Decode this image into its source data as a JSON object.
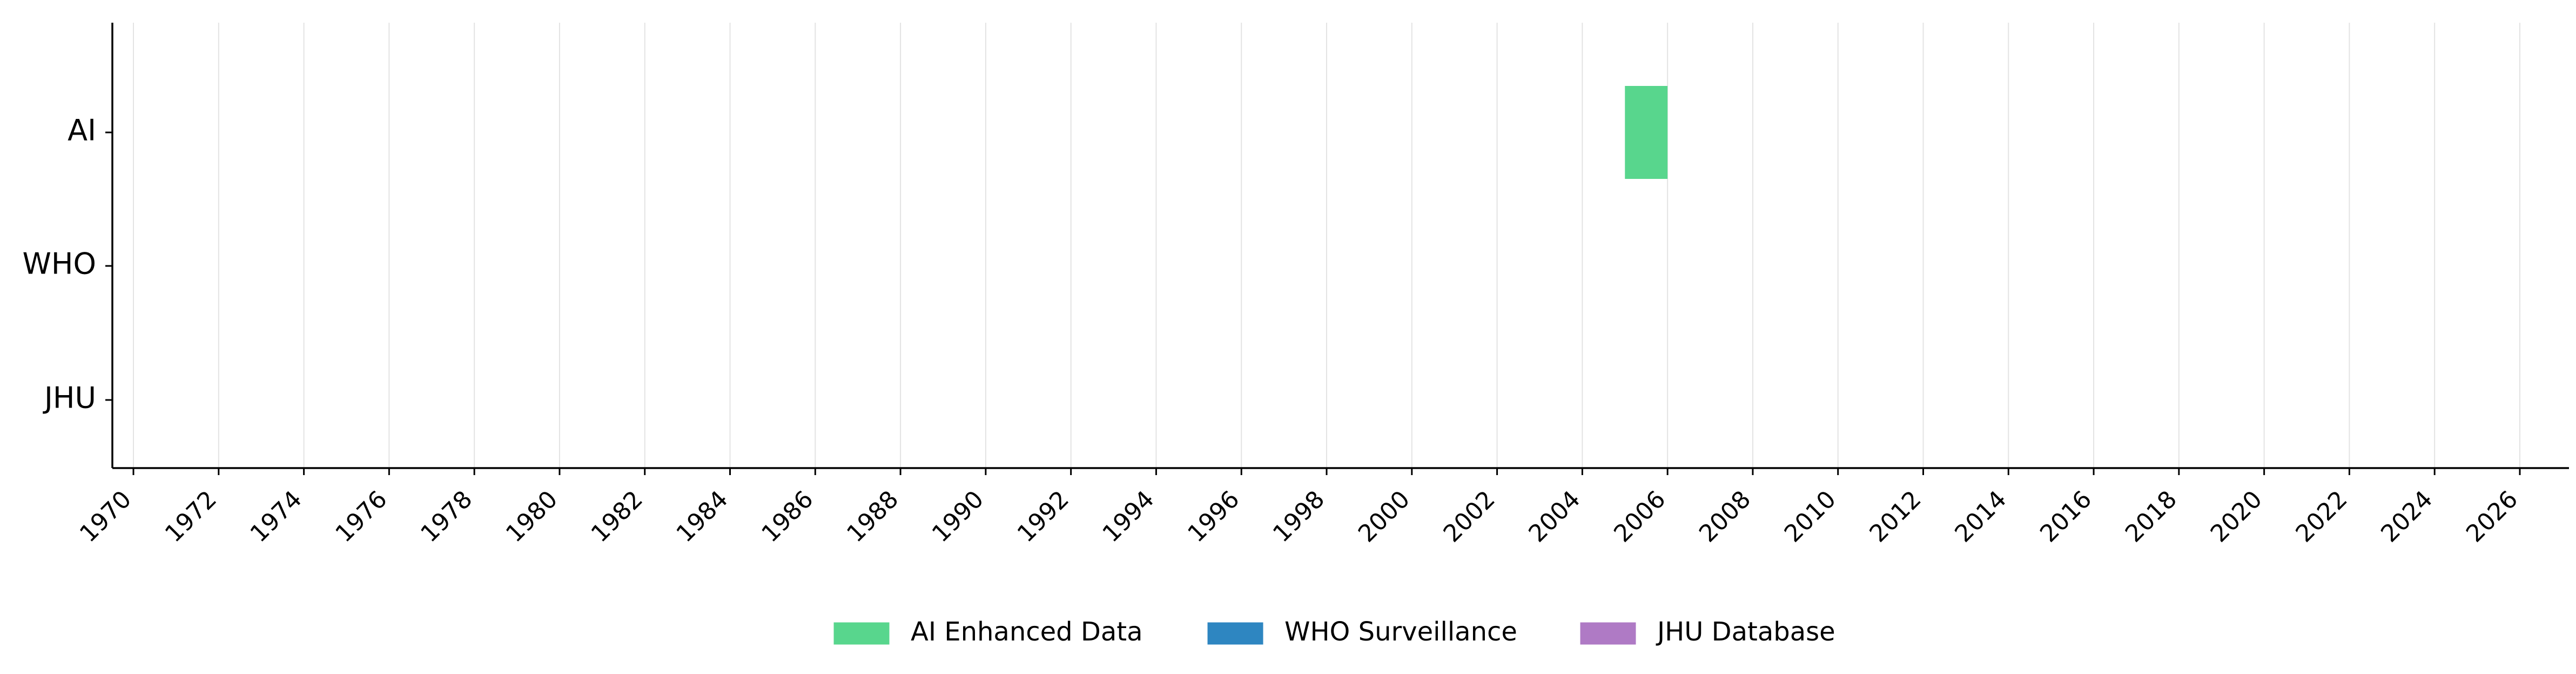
{
  "chart_data": {
    "type": "bar",
    "orientation": "horizontal",
    "title": "",
    "xlabel": "",
    "ylabel": "",
    "xlim": [
      1969.5,
      2027.0
    ],
    "x_ticks": [
      1970,
      1972,
      1974,
      1976,
      1978,
      1980,
      1982,
      1984,
      1986,
      1988,
      1990,
      1992,
      1994,
      1996,
      1998,
      2000,
      2002,
      2004,
      2006,
      2008,
      2010,
      2012,
      2014,
      2016,
      2018,
      2020,
      2022,
      2024,
      2026
    ],
    "categories": [
      "AI",
      "WHO",
      "JHU"
    ],
    "grid": "vertical",
    "legend_placement": "bottom-center",
    "series": [
      {
        "name": "AI Enhanced Data",
        "category": "AI",
        "color": "#58d68d",
        "spans": [
          {
            "start": 2005,
            "end": 2006
          }
        ]
      },
      {
        "name": "WHO Surveillance",
        "category": "WHO",
        "color": "#2e86c1",
        "spans": []
      },
      {
        "name": "JHU Database",
        "category": "JHU",
        "color": "#af7ac5",
        "spans": []
      }
    ]
  }
}
